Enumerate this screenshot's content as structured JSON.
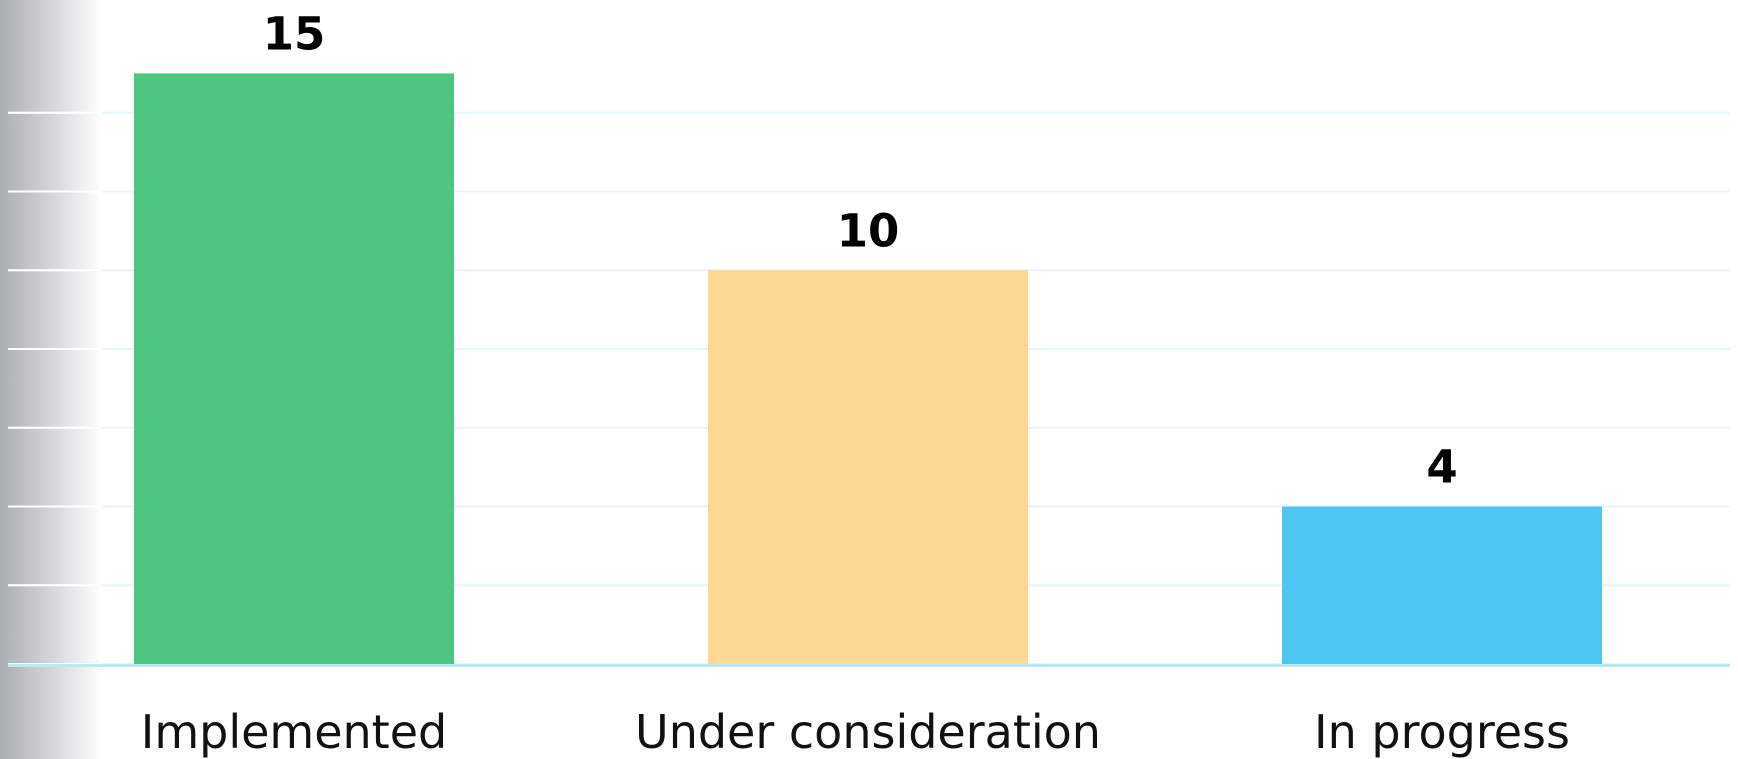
{
  "chart_data": {
    "type": "bar",
    "categories": [
      "Implemented",
      "Under consideration",
      "In progress"
    ],
    "values": [
      15,
      10,
      4
    ],
    "data_labels": [
      "15",
      "10",
      "4"
    ],
    "colors": [
      "#4FC582",
      "#FDD892",
      "#4DC6F2"
    ],
    "ylim": [
      0,
      16
    ],
    "title": "",
    "xlabel": "",
    "ylabel": "",
    "grid": true,
    "grid_color": "#E6F6FB",
    "baseline_color": "#BDE9F5",
    "legend": "none"
  }
}
